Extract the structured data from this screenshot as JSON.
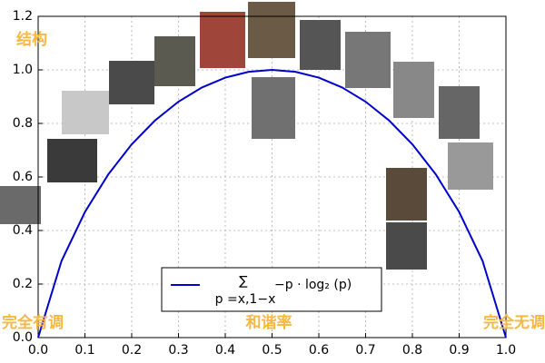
{
  "chart_data": {
    "type": "line",
    "x": [
      0,
      0.05,
      0.1,
      0.15,
      0.2,
      0.25,
      0.3,
      0.35,
      0.4,
      0.45,
      0.5,
      0.55,
      0.6,
      0.65,
      0.7,
      0.75,
      0.8,
      0.85,
      0.9,
      0.95,
      1
    ],
    "series": [
      {
        "name": "−p · log₂ (p)",
        "color": "#0000cc",
        "values": [
          0,
          0.2864,
          0.469,
          0.6098,
          0.7219,
          0.8113,
          0.8813,
          0.9341,
          0.971,
          0.9928,
          1,
          0.9928,
          0.971,
          0.9341,
          0.8813,
          0.8113,
          0.7219,
          0.6098,
          0.469,
          0.2864,
          0
        ]
      }
    ],
    "legend": {
      "sum_symbol": "∑",
      "sum_subscript": "p =x,1−x"
    },
    "annotations": [
      "结构",
      "完全有调",
      "和谐率",
      "完全无调"
    ],
    "xlim": [
      0,
      1
    ],
    "xticks": [
      {
        "value": 0,
        "label": "0.0"
      },
      0.1,
      0.2,
      0.3,
      0.4,
      0.5,
      0.6,
      0.7,
      0.8,
      0.9,
      {
        "value": 1,
        "label": "1.0"
      }
    ],
    "ylim": [
      0,
      1.2
    ],
    "yticks": [
      {
        "value": 0,
        "label": "0.0"
      },
      0.2,
      0.4,
      0.6,
      0.8,
      {
        "value": 1,
        "label": "1.0"
      },
      1.2
    ],
    "grid": true
  }
}
